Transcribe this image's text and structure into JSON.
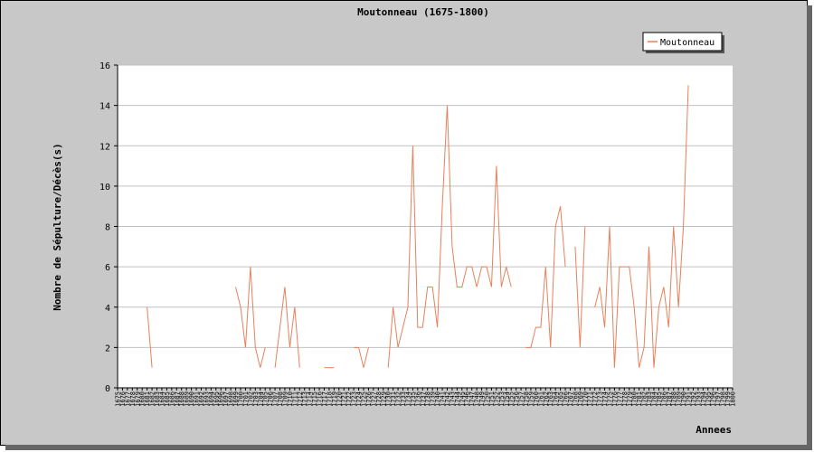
{
  "chart_data": {
    "type": "line",
    "title": "Moutonneau (1675-1800)",
    "xlabel": "Annees",
    "ylabel": "Nombre de Sépulture/Décès(s)",
    "xlim": [
      1675,
      1800
    ],
    "ylim": [
      0,
      16
    ],
    "yticks": [
      0,
      2,
      4,
      6,
      8,
      10,
      12,
      14,
      16
    ],
    "grid": true,
    "legend_position": "top-right",
    "line_color": "#e8805a",
    "series": [
      {
        "name": "Moutonneau",
        "values": [
          [
            1681,
            4
          ],
          [
            1682,
            1
          ],
          null,
          [
            1699,
            5
          ],
          [
            1700,
            4
          ],
          [
            1701,
            2
          ],
          [
            1702,
            6
          ],
          [
            1703,
            2
          ],
          [
            1704,
            1
          ],
          [
            1705,
            2
          ],
          null,
          [
            1707,
            1
          ],
          [
            1708,
            3
          ],
          [
            1709,
            5
          ],
          [
            1710,
            2
          ],
          [
            1711,
            4
          ],
          [
            1712,
            1
          ],
          null,
          [
            1717,
            1
          ],
          [
            1718,
            1
          ],
          [
            1719,
            1
          ],
          null,
          [
            1723,
            2
          ],
          [
            1724,
            2
          ],
          [
            1725,
            1
          ],
          [
            1726,
            2
          ],
          null,
          [
            1730,
            1
          ],
          [
            1731,
            4
          ],
          [
            1732,
            2
          ],
          [
            1733,
            3
          ],
          [
            1734,
            4
          ],
          [
            1735,
            12
          ],
          [
            1736,
            3
          ],
          [
            1737,
            3
          ],
          [
            1738,
            5
          ],
          [
            1739,
            5
          ],
          [
            1740,
            3
          ],
          [
            1741,
            9
          ],
          [
            1742,
            14
          ],
          [
            1743,
            7
          ],
          [
            1744,
            5
          ],
          [
            1745,
            5
          ],
          [
            1746,
            6
          ],
          [
            1747,
            6
          ],
          [
            1748,
            5
          ],
          [
            1749,
            6
          ],
          [
            1750,
            6
          ],
          [
            1751,
            5
          ],
          [
            1752,
            11
          ],
          [
            1753,
            5
          ],
          [
            1754,
            6
          ],
          [
            1755,
            5
          ],
          null,
          [
            1758,
            2
          ],
          [
            1759,
            2
          ],
          [
            1760,
            3
          ],
          [
            1761,
            3
          ],
          [
            1762,
            6
          ],
          [
            1763,
            2
          ],
          [
            1764,
            8
          ],
          [
            1765,
            9
          ],
          [
            1766,
            6
          ],
          null,
          [
            1768,
            7
          ],
          [
            1769,
            2
          ],
          [
            1770,
            8
          ],
          null,
          [
            1772,
            4
          ],
          [
            1773,
            5
          ],
          [
            1774,
            3
          ],
          [
            1775,
            8
          ],
          [
            1776,
            1
          ],
          [
            1777,
            6
          ],
          [
            1778,
            6
          ],
          [
            1779,
            6
          ],
          [
            1780,
            4
          ],
          [
            1781,
            1
          ],
          [
            1782,
            2
          ],
          [
            1783,
            7
          ],
          [
            1784,
            1
          ],
          [
            1785,
            4
          ],
          [
            1786,
            5
          ],
          [
            1787,
            3
          ],
          [
            1788,
            8
          ],
          [
            1789,
            4
          ],
          [
            1790,
            8
          ],
          [
            1791,
            15
          ]
        ]
      }
    ]
  }
}
